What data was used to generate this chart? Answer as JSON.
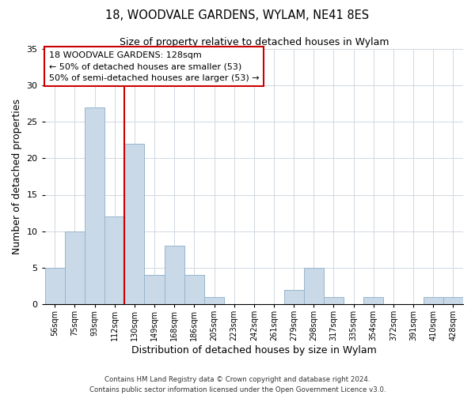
{
  "title": "18, WOODVALE GARDENS, WYLAM, NE41 8ES",
  "subtitle": "Size of property relative to detached houses in Wylam",
  "xlabel": "Distribution of detached houses by size in Wylam",
  "ylabel": "Number of detached properties",
  "bar_labels": [
    "56sqm",
    "75sqm",
    "93sqm",
    "112sqm",
    "130sqm",
    "149sqm",
    "168sqm",
    "186sqm",
    "205sqm",
    "223sqm",
    "242sqm",
    "261sqm",
    "279sqm",
    "298sqm",
    "317sqm",
    "335sqm",
    "354sqm",
    "372sqm",
    "391sqm",
    "410sqm",
    "428sqm"
  ],
  "bar_values": [
    5,
    10,
    27,
    12,
    22,
    4,
    8,
    4,
    1,
    0,
    0,
    0,
    2,
    5,
    1,
    0,
    1,
    0,
    0,
    1,
    1
  ],
  "bar_color": "#c9d9e8",
  "bar_edge_color": "#9ab5cb",
  "highlight_line_color": "#cc0000",
  "highlight_line_index": 4,
  "ylim": [
    0,
    35
  ],
  "yticks": [
    0,
    5,
    10,
    15,
    20,
    25,
    30,
    35
  ],
  "annotation_text_line1": "18 WOODVALE GARDENS: 128sqm",
  "annotation_text_line2": "← 50% of detached houses are smaller (53)",
  "annotation_text_line3": "50% of semi-detached houses are larger (53) →",
  "footer_line1": "Contains HM Land Registry data © Crown copyright and database right 2024.",
  "footer_line2": "Contains public sector information licensed under the Open Government Licence v3.0."
}
